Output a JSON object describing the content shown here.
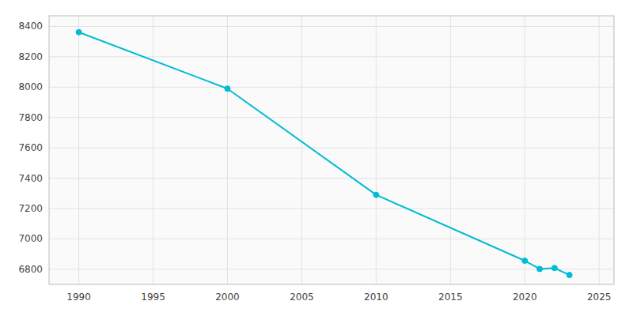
{
  "chart_data": {
    "type": "line",
    "x": [
      1990,
      2000,
      2010,
      2020,
      2021,
      2022,
      2023
    ],
    "values": [
      8362,
      7990,
      7290,
      6856,
      6802,
      6808,
      6762
    ],
    "color": "#00bcd4",
    "marker": "circle",
    "xlim": [
      1988,
      2026
    ],
    "ylim": [
      6700,
      8470
    ],
    "xticks": [
      1990,
      1995,
      2000,
      2005,
      2010,
      2015,
      2020,
      2025
    ],
    "yticks": [
      6800,
      7000,
      7200,
      7400,
      7600,
      7800,
      8000,
      8200,
      8400
    ],
    "grid": true
  }
}
